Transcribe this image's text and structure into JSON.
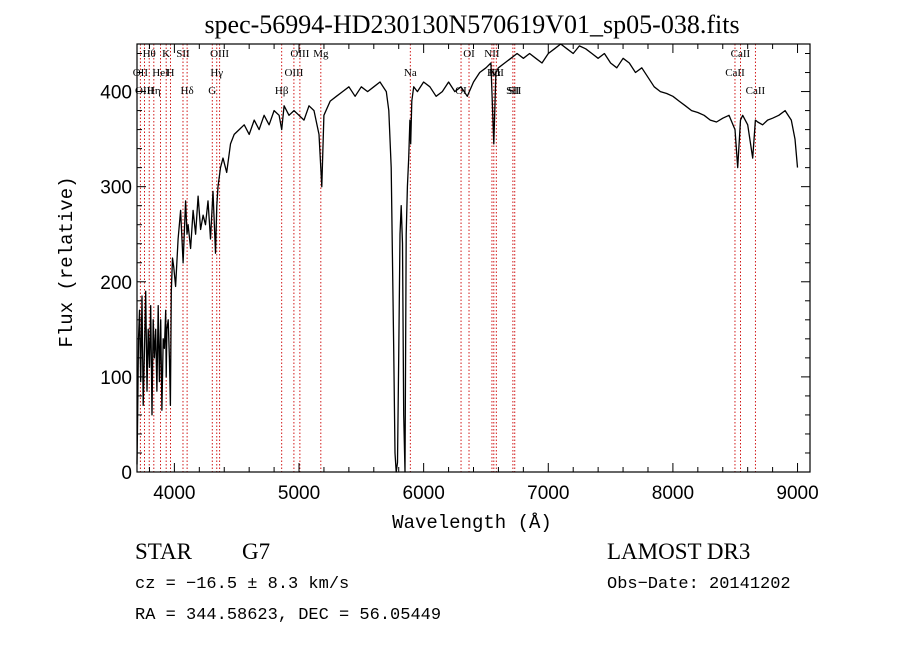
{
  "chart_data": {
    "type": "line",
    "title": "spec-56994-HD230130N570619V01_sp05-038.fits",
    "xlabel": "Wavelength (Å)",
    "ylabel": "Flux (relative)",
    "xlim": [
      3700,
      9100
    ],
    "ylim": [
      0,
      450
    ],
    "xticks": [
      4000,
      5000,
      6000,
      7000,
      8000,
      9000
    ],
    "yticks": [
      0,
      100,
      200,
      300,
      400
    ],
    "grid": false,
    "series": [
      {
        "color": "#000000",
        "x": [
          3700,
          3705,
          3712,
          3720,
          3730,
          3740,
          3750,
          3760,
          3770,
          3780,
          3790,
          3800,
          3810,
          3820,
          3830,
          3840,
          3850,
          3860,
          3870,
          3880,
          3890,
          3900,
          3910,
          3920,
          3930,
          3934,
          3940,
          3950,
          3960,
          3968,
          3975,
          3985,
          3995,
          4010,
          4030,
          4050,
          4070,
          4090,
          4101,
          4110,
          4130,
          4150,
          4170,
          4190,
          4210,
          4230,
          4250,
          4270,
          4290,
          4310,
          4330,
          4340,
          4350,
          4370,
          4390,
          4420,
          4450,
          4480,
          4520,
          4560,
          4600,
          4640,
          4680,
          4720,
          4760,
          4800,
          4840,
          4861,
          4880,
          4920,
          4960,
          5000,
          5040,
          5080,
          5120,
          5160,
          5183,
          5200,
          5250,
          5300,
          5350,
          5400,
          5450,
          5500,
          5550,
          5600,
          5650,
          5700,
          5720,
          5740,
          5760,
          5770,
          5780,
          5790,
          5800,
          5810,
          5820,
          5830,
          5840,
          5850,
          5860,
          5870,
          5880,
          5890,
          5896,
          5905,
          5920,
          5950,
          6000,
          6050,
          6100,
          6150,
          6200,
          6250,
          6300,
          6350,
          6400,
          6450,
          6500,
          6540,
          6563,
          6580,
          6600,
          6650,
          6700,
          6750,
          6800,
          6850,
          6900,
          6950,
          7000,
          7050,
          7100,
          7150,
          7200,
          7250,
          7300,
          7350,
          7400,
          7450,
          7500,
          7550,
          7600,
          7650,
          7700,
          7750,
          7800,
          7850,
          7900,
          7950,
          8000,
          8050,
          8100,
          8150,
          8200,
          8250,
          8300,
          8350,
          8400,
          8450,
          8498,
          8520,
          8542,
          8560,
          8600,
          8640,
          8662,
          8680,
          8720,
          8760,
          8800,
          8850,
          8900,
          8950,
          8980,
          9000
        ],
        "y": [
          8,
          55,
          140,
          170,
          95,
          185,
          70,
          130,
          190,
          85,
          150,
          110,
          175,
          60,
          160,
          120,
          150,
          85,
          175,
          95,
          160,
          65,
          140,
          130,
          170,
          100,
          150,
          160,
          120,
          70,
          190,
          225,
          215,
          195,
          245,
          275,
          220,
          285,
          250,
          260,
          235,
          275,
          250,
          290,
          255,
          270,
          260,
          285,
          245,
          295,
          230,
          280,
          300,
          320,
          330,
          315,
          345,
          355,
          360,
          365,
          355,
          370,
          360,
          375,
          365,
          380,
          375,
          360,
          385,
          375,
          380,
          375,
          370,
          385,
          380,
          355,
          300,
          375,
          390,
          395,
          400,
          405,
          395,
          405,
          400,
          405,
          410,
          400,
          380,
          320,
          130,
          20,
          0,
          10,
          120,
          250,
          280,
          240,
          60,
          0,
          250,
          300,
          330,
          370,
          345,
          390,
          405,
          400,
          410,
          405,
          395,
          400,
          410,
          400,
          405,
          395,
          410,
          420,
          425,
          430,
          345,
          420,
          425,
          430,
          435,
          440,
          435,
          440,
          435,
          430,
          440,
          445,
          450,
          445,
          440,
          448,
          445,
          440,
          435,
          440,
          430,
          425,
          435,
          430,
          420,
          425,
          415,
          405,
          400,
          398,
          395,
          390,
          385,
          380,
          378,
          375,
          370,
          368,
          372,
          375,
          360,
          320,
          370,
          375,
          365,
          330,
          370,
          368,
          365,
          370,
          372,
          375,
          380,
          370,
          350,
          320
        ]
      }
    ],
    "line_markers": [
      {
        "label": "Hθ",
        "x": 3798
      },
      {
        "label": "OII",
        "x": 3727
      },
      {
        "label": "OIII",
        "x": 3760
      },
      {
        "label": "K",
        "x": 3934
      },
      {
        "label": "HeI",
        "x": 3889
      },
      {
        "label": "Hη",
        "x": 3835
      },
      {
        "label": "SII",
        "x": 4069
      },
      {
        "label": "H",
        "x": 3969
      },
      {
        "label": "Hδ",
        "x": 4102
      },
      {
        "label": "OIII",
        "x": 4363
      },
      {
        "label": "Hγ",
        "x": 4340
      },
      {
        "label": "G",
        "x": 4304
      },
      {
        "label": "OIII",
        "x": 5007
      },
      {
        "label": "OIII",
        "x": 4959
      },
      {
        "label": "Hβ",
        "x": 4861
      },
      {
        "label": "Mg",
        "x": 5175
      },
      {
        "label": "Na",
        "x": 5893
      },
      {
        "label": "OI",
        "x": 6300
      },
      {
        "label": "OI",
        "x": 6364
      },
      {
        "label": "Hα",
        "x": 6563
      },
      {
        "label": "SII",
        "x": 6716
      },
      {
        "label": "NII",
        "x": 6548
      },
      {
        "label": "NII",
        "x": 6583
      },
      {
        "label": "SII",
        "x": 6731
      },
      {
        "label": "CaII",
        "x": 8542
      },
      {
        "label": "CaII",
        "x": 8498
      },
      {
        "label": "CaII",
        "x": 8662
      }
    ]
  },
  "info": {
    "object_class": "STAR",
    "subclass": "G7",
    "survey": "LAMOST DR3",
    "redshift_line": "cz = −16.5 ± 8.3 km/s",
    "obs_date": "Obs−Date: 20141202",
    "coords": "RA = 344.58623, DEC =  56.05449"
  },
  "colors": {
    "spectrum": "#000000",
    "line_marker": "#cc0000",
    "axis": "#000000",
    "background": "#ffffff"
  }
}
